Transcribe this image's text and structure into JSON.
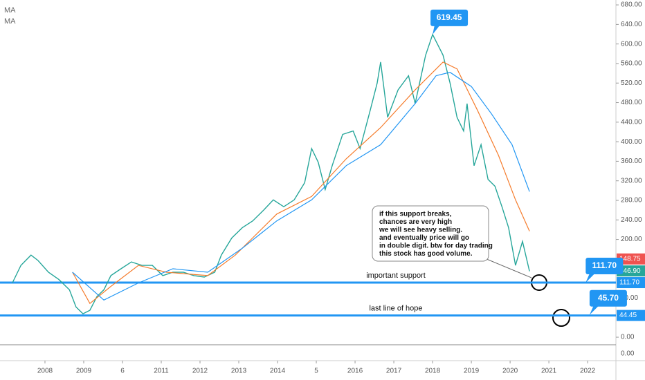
{
  "chart_data": {
    "type": "line",
    "legend": [
      "MA",
      "MA"
    ],
    "xlim": [
      2006.84,
      2022.73
    ],
    "ylim": [
      -15.5,
      690
    ],
    "xticks": [
      2008,
      2009,
      {
        "value": 2010,
        "label": "6"
      },
      2011,
      2012,
      2013,
      2014,
      {
        "value": 2015,
        "label": "5"
      },
      2016,
      2017,
      2018,
      2019,
      2020,
      2021,
      2022
    ],
    "yticks": [
      {
        "value": 680,
        "label": "680.00"
      },
      {
        "value": 640,
        "label": "640.00"
      },
      {
        "value": 600,
        "label": "600.00"
      },
      {
        "value": 560,
        "label": "560.00"
      },
      {
        "value": 520,
        "label": "520.00"
      },
      {
        "value": 480,
        "label": "480.00"
      },
      {
        "value": 440,
        "label": "440.00"
      },
      {
        "value": 400,
        "label": "400.00"
      },
      {
        "value": 360,
        "label": "360.00"
      },
      {
        "value": 320,
        "label": "320.00"
      },
      {
        "value": 280,
        "label": "280.00"
      },
      {
        "value": 240,
        "label": "240.00"
      },
      {
        "value": 200,
        "label": "200.00"
      },
      {
        "value": 80,
        "label": "80.00"
      },
      {
        "value": 0,
        "label": "0.00"
      }
    ],
    "pane2_tick": {
      "value": 0,
      "label": "0.00"
    },
    "series": [
      {
        "color": "#26a69a",
        "x": [
          2007.16,
          2007.38,
          2007.64,
          2007.82,
          2008.09,
          2008.36,
          2008.63,
          2008.8,
          2008.98,
          2009.16,
          2009.34,
          2009.52,
          2009.7,
          2009.96,
          2010.23,
          2010.5,
          2010.77,
          2011.04,
          2011.3,
          2011.57,
          2011.84,
          2012.11,
          2012.38,
          2012.55,
          2012.82,
          2013.09,
          2013.36,
          2013.63,
          2013.89,
          2014.16,
          2014.43,
          2014.7,
          2014.88,
          2015.05,
          2015.23,
          2015.41,
          2015.68,
          2015.95,
          2016.13,
          2016.39,
          2016.57,
          2016.66,
          2016.84,
          2017.11,
          2017.38,
          2017.55,
          2017.82,
          2018,
          2018.27,
          2018.45,
          2018.63,
          2018.8,
          2018.89,
          2019.07,
          2019.25,
          2019.43,
          2019.61,
          2019.79,
          2019.96,
          2020.14,
          2020.32,
          2020.5
        ],
        "values": [
          111,
          147,
          168,
          157,
          133,
          118,
          97,
          62,
          48,
          55,
          83,
          97,
          126,
          140,
          154,
          147,
          147,
          126,
          133,
          133,
          126,
          123,
          133,
          168,
          203,
          224,
          238,
          259,
          281,
          267,
          281,
          316,
          386,
          358,
          302,
          351,
          415,
          422,
          386,
          464,
          520,
          563,
          450,
          506,
          535,
          478,
          577,
          619.45,
          577,
          520,
          450,
          422,
          478,
          351,
          394,
          323,
          309,
          267,
          224,
          147,
          196,
          135
        ]
      },
      {
        "name": "MA",
        "color": "#f57c2c",
        "x": [
          2008.71,
          2009.16,
          2009.7,
          2010.41,
          2011.13,
          2012.2,
          2012.91,
          2013.98,
          2014.88,
          2015.77,
          2016.66,
          2017.55,
          2018.27,
          2018.63,
          2019.16,
          2019.7,
          2020.14,
          2020.5
        ],
        "values": [
          133,
          69,
          104,
          147,
          133,
          126,
          168,
          252,
          288,
          365,
          429,
          506,
          563,
          549,
          464,
          372,
          281,
          217
        ]
      },
      {
        "name": "MA",
        "color": "#2196f3",
        "x": [
          2008.71,
          2009.52,
          2010.41,
          2011.3,
          2012.2,
          2013.09,
          2013.98,
          2014.88,
          2015.77,
          2016.66,
          2017.55,
          2018.09,
          2018.45,
          2019.0,
          2019.52,
          2020.05,
          2020.5
        ],
        "values": [
          133,
          76,
          111,
          140,
          133,
          182,
          238,
          281,
          351,
          394,
          478,
          535,
          542,
          513,
          457,
          394,
          298
        ]
      }
    ],
    "hlines": [
      {
        "value": 111.7,
        "label": "111.70",
        "text": "important support"
      },
      {
        "value": 44.45,
        "label": "44.45",
        "text": "last line of hope"
      }
    ],
    "callouts": [
      {
        "x": 2018,
        "value": 619.45,
        "label": "619.45"
      },
      {
        "x": 2021.95,
        "value": 111.7,
        "label": "111.70"
      },
      {
        "x": 2022.05,
        "value": 45.7,
        "label": "45.70"
      }
    ],
    "price_labels": [
      {
        "value": 148.75,
        "label": "148.75",
        "color": "#ef5350"
      },
      {
        "value": 146.9,
        "label": "146.90",
        "color": "#26a69a"
      }
    ],
    "note": [
      "if this support breaks,",
      "chances are very high",
      "we will see heavy selling.",
      "and eventually price will go",
      "in double digit. btw for day trading",
      "this stock has good volume."
    ]
  }
}
